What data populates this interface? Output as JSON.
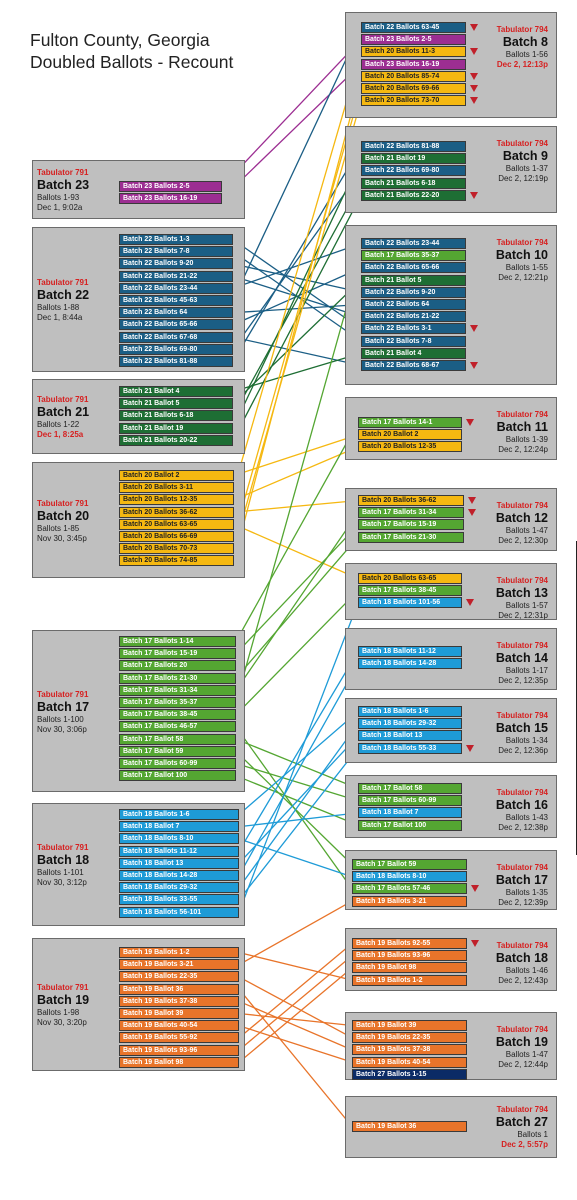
{
  "title": {
    "line1": "Fulton County, Georgia",
    "line2": "Doubled Ballots - Recount"
  },
  "colors": {
    "17": "#54a632",
    "18": "#1e9bd7",
    "19": "#e8742a",
    "20": "#f5b811",
    "21": "#1e6e34",
    "22": "#1b5e85",
    "23": "#9c2e92",
    "27": "#0b2b66"
  },
  "left_batches": [
    {
      "id": "L23",
      "tabulator": "Tabulator 791",
      "batch": "Batch 23",
      "ballots": "Ballots 1-93",
      "date": "Dec 1, 9:02a",
      "date_red": false,
      "chips": [
        {
          "label": "Batch 23 Ballots 2-5",
          "c": "23"
        },
        {
          "label": "Batch 23 Ballots 16-19",
          "c": "23"
        }
      ]
    },
    {
      "id": "L22",
      "tabulator": "Tabulator 791",
      "batch": "Batch 22",
      "ballots": "Ballots 1-88",
      "date": "Dec 1, 8:44a",
      "date_red": false,
      "chips": [
        {
          "label": "Batch 22 Ballots 1-3",
          "c": "22"
        },
        {
          "label": "Batch 22 Ballots 7-8",
          "c": "22"
        },
        {
          "label": "Batch 22 Ballots 9-20",
          "c": "22"
        },
        {
          "label": "Batch 22 Ballots 21-22",
          "c": "22"
        },
        {
          "label": "Batch 22 Ballots 23-44",
          "c": "22"
        },
        {
          "label": "Batch 22 Ballots 45-63",
          "c": "22"
        },
        {
          "label": "Batch 22 Ballots 64",
          "c": "22"
        },
        {
          "label": "Batch 22 Ballots 65-66",
          "c": "22"
        },
        {
          "label": "Batch 22 Ballots 67-68",
          "c": "22"
        },
        {
          "label": "Batch 22 Ballots 69-80",
          "c": "22"
        },
        {
          "label": "Batch 22 Ballots  81-88",
          "c": "22"
        }
      ]
    },
    {
      "id": "L21",
      "tabulator": "Tabulator 791",
      "batch": "Batch 21",
      "ballots": "Ballots 1-22",
      "date": "Dec 1, 8:25a",
      "date_red": true,
      "chips": [
        {
          "label": "Batch 21 Ballot 4",
          "c": "21"
        },
        {
          "label": "Batch 21 Ballot 5",
          "c": "21"
        },
        {
          "label": "Batch 21 Ballots 6-18",
          "c": "21"
        },
        {
          "label": "Batch 21 Ballot 19",
          "c": "21"
        },
        {
          "label": "Batch 21 Ballots 20-22",
          "c": "21"
        }
      ]
    },
    {
      "id": "L20",
      "tabulator": "Tabulator 791",
      "batch": "Batch 20",
      "ballots": "Ballots 1-85",
      "date": "Nov 30, 3:45p",
      "date_red": false,
      "chips": [
        {
          "label": "Batch 20 Ballot 2",
          "c": "20"
        },
        {
          "label": "Batch 20 Ballots 3-11",
          "c": "20"
        },
        {
          "label": "Batch 20 Ballots 12-35",
          "c": "20"
        },
        {
          "label": "Batch 20 Ballots 36-62",
          "c": "20"
        },
        {
          "label": "Batch 20 Ballots 63-65",
          "c": "20"
        },
        {
          "label": "Batch 20 Ballots 66-69",
          "c": "20"
        },
        {
          "label": "Batch 20 Ballots 70-73",
          "c": "20"
        },
        {
          "label": "Batch 20 Ballots 74-85",
          "c": "20"
        }
      ]
    },
    {
      "id": "L17",
      "tabulator": "Tabulator 791",
      "batch": "Batch 17",
      "ballots": "Ballots 1-100",
      "date": "Nov 30, 3:06p",
      "date_red": false,
      "chips": [
        {
          "label": "Batch 17 Ballots 1-14",
          "c": "17"
        },
        {
          "label": "Batch 17 Ballots 15-19",
          "c": "17"
        },
        {
          "label": "Batch 17 Ballots 20",
          "c": "17"
        },
        {
          "label": "Batch 17 Ballots 21-30",
          "c": "17"
        },
        {
          "label": "Batch 17 Ballots 31-34",
          "c": "17"
        },
        {
          "label": "Batch 17 Ballots 35-37",
          "c": "17"
        },
        {
          "label": "Batch 17 Ballots 38-45",
          "c": "17"
        },
        {
          "label": "Batch 17 Ballots 46-57",
          "c": "17"
        },
        {
          "label": "Batch 17 Ballot 58",
          "c": "17"
        },
        {
          "label": "Batch 17 Ballot 59",
          "c": "17"
        },
        {
          "label": "Batch 17 Ballots 60-99",
          "c": "17"
        },
        {
          "label": "Batch 17 Ballot 100",
          "c": "17"
        }
      ]
    },
    {
      "id": "L18",
      "tabulator": "Tabulator 791",
      "batch": "Batch 18",
      "ballots": "Ballots 1-101",
      "date": "Nov 30, 3:12p",
      "date_red": false,
      "chips": [
        {
          "label": "Batch 18 Ballots 1-6",
          "c": "18"
        },
        {
          "label": "Batch 18 Ballot 7",
          "c": "18"
        },
        {
          "label": "Batch 18 Ballots 8-10",
          "c": "18"
        },
        {
          "label": "Batch 18 Ballots 11-12",
          "c": "18"
        },
        {
          "label": "Batch 18 Ballot 13",
          "c": "18"
        },
        {
          "label": "Batch 18 Ballots 14-28",
          "c": "18"
        },
        {
          "label": "Batch 18 Ballots 29-32",
          "c": "18"
        },
        {
          "label": "Batch 18 Ballots 33-55",
          "c": "18"
        },
        {
          "label": "Batch 18 Ballots 56-101",
          "c": "18"
        }
      ]
    },
    {
      "id": "L19",
      "tabulator": "Tabulator 791",
      "batch": "Batch 19",
      "ballots": "Ballots 1-98",
      "date": "Nov 30, 3:20p",
      "date_red": false,
      "chips": [
        {
          "label": "Batch 19 Ballots 1-2",
          "c": "19"
        },
        {
          "label": "Batch 19 Ballots 3-21",
          "c": "19"
        },
        {
          "label": "Batch 19 Ballots 22-35",
          "c": "19"
        },
        {
          "label": "Batch 19 Ballot 36",
          "c": "19"
        },
        {
          "label": "Batch 19 Ballots 37-38",
          "c": "19"
        },
        {
          "label": "Batch 19 Ballot 39",
          "c": "19"
        },
        {
          "label": "Batch 19 Ballots 40-54",
          "c": "19"
        },
        {
          "label": "Batch 19 Ballots 55-92",
          "c": "19"
        },
        {
          "label": "Batch 19 Ballots 93-96",
          "c": "19"
        },
        {
          "label": "Batch 19 Ballot 98",
          "c": "19"
        }
      ]
    }
  ],
  "right_batches": [
    {
      "id": "R8",
      "tabulator": "Tabulator 794",
      "batch": "Batch 8",
      "ballots": "Ballots 1-56",
      "date": "Dec 2, 12:13p",
      "date_red": true,
      "chips": [
        {
          "label": "Batch 22 Ballots 63-45",
          "c": "22",
          "flag": true
        },
        {
          "label": "Batch 23 Ballots 2-5",
          "c": "23"
        },
        {
          "label": "Batch 20 Ballots 11-3",
          "c": "20",
          "flag": true
        },
        {
          "label": "Batch 23 Ballots 16-19",
          "c": "23"
        },
        {
          "label": "Batch 20 Ballots 85-74",
          "c": "20",
          "flag": true
        },
        {
          "label": "Batch 20 Ballots 69-66",
          "c": "20",
          "flag": true
        },
        {
          "label": "Batch 20 Ballots 73-70",
          "c": "20",
          "flag": true
        }
      ]
    },
    {
      "id": "R9",
      "tabulator": "Tabulator 794",
      "batch": "Batch 9",
      "ballots": "Ballots 1-37",
      "date": "Dec 2, 12:19p",
      "date_red": false,
      "chips": [
        {
          "label": "Batch 22 Ballots  81-88",
          "c": "22"
        },
        {
          "label": "Batch 21 Ballot 19",
          "c": "21"
        },
        {
          "label": "Batch 22 Ballots 69-80",
          "c": "22"
        },
        {
          "label": "Batch 21 Ballots 6-18",
          "c": "21"
        },
        {
          "label": "Batch 21 Ballots 22-20",
          "c": "21",
          "flag": true
        }
      ]
    },
    {
      "id": "R10",
      "tabulator": "Tabulator 794",
      "batch": "Batch 10",
      "ballots": "Ballots 1-55",
      "date": "Dec 2, 12:21p",
      "date_red": false,
      "chips": [
        {
          "label": "Batch 22 Ballots 23-44",
          "c": "22"
        },
        {
          "label": "Batch 17 Ballots 35-37",
          "c": "17"
        },
        {
          "label": "Batch 22 Ballots 65-66",
          "c": "22"
        },
        {
          "label": "Batch 21 Ballot 5",
          "c": "21"
        },
        {
          "label": "Batch 22 Ballots 9-20",
          "c": "22"
        },
        {
          "label": "Batch 22 Ballots 64",
          "c": "22"
        },
        {
          "label": "Batch 22 Ballots 21-22",
          "c": "22"
        },
        {
          "label": "Batch 22 Ballots 3-1",
          "c": "22",
          "flag": true
        },
        {
          "label": "Batch 22 Ballots 7-8",
          "c": "22"
        },
        {
          "label": "Batch 21 Ballot 4",
          "c": "21"
        },
        {
          "label": "Batch 22 Ballots 68-67",
          "c": "22",
          "flag": true
        }
      ]
    },
    {
      "id": "R11",
      "tabulator": "Tabulator 794",
      "batch": "Batch 11",
      "ballots": "Ballots 1-39",
      "date": "Dec 2, 12:24p",
      "date_red": false,
      "chips": [
        {
          "label": "Batch 17 Ballots 14-1",
          "c": "17",
          "flag": true
        },
        {
          "label": "Batch 20 Ballot 2",
          "c": "20"
        },
        {
          "label": "Batch 20 Ballots 12-35",
          "c": "20"
        }
      ]
    },
    {
      "id": "R12",
      "tabulator": "Tabulator 794",
      "batch": "Batch 12",
      "ballots": "Ballots 1-47",
      "date": "Dec 2, 12:30p",
      "date_red": false,
      "chips": [
        {
          "label": "Batch 20 Ballots 36-62",
          "c": "20",
          "flag": true
        },
        {
          "label": "Batch 17 Ballots 31-34",
          "c": "17",
          "flag": true
        },
        {
          "label": "Batch 17 Ballots 15-19",
          "c": "17"
        },
        {
          "label": "Batch 17 Ballots 21-30",
          "c": "17"
        }
      ]
    },
    {
      "id": "R13",
      "tabulator": "Tabulator 794",
      "batch": "Batch 13",
      "ballots": "Ballots 1-57",
      "date": "Dec 2, 12:31p",
      "date_red": false,
      "chips": [
        {
          "label": "Batch 20 Ballots 63-65",
          "c": "20"
        },
        {
          "label": "Batch 17 Ballots 38-45",
          "c": "17"
        },
        {
          "label": "Batch 18 Ballots 101-56",
          "c": "18",
          "flag": true
        }
      ]
    },
    {
      "id": "R14",
      "tabulator": "Tabulator 794",
      "batch": "Batch 14",
      "ballots": "Ballots 1-17",
      "date": "Dec 2, 12:35p",
      "date_red": false,
      "chips": [
        {
          "label": "Batch 18 Ballots 11-12",
          "c": "18"
        },
        {
          "label": "Batch 18 Ballots 14-28",
          "c": "18"
        }
      ]
    },
    {
      "id": "R15",
      "tabulator": "Tabulator 794",
      "batch": "Batch 15",
      "ballots": "Ballots 1-34",
      "date": "Dec 2, 12:36p",
      "date_red": false,
      "chips": [
        {
          "label": "Batch 18 Ballots 1-6",
          "c": "18"
        },
        {
          "label": "Batch 18 Ballots 29-32",
          "c": "18"
        },
        {
          "label": "Batch 18 Ballot 13",
          "c": "18"
        },
        {
          "label": "Batch 18 Ballots 55-33",
          "c": "18",
          "flag": true
        }
      ]
    },
    {
      "id": "R16",
      "tabulator": "Tabulator 794",
      "batch": "Batch 16",
      "ballots": "Ballots 1-43",
      "date": "Dec 2, 12:38p",
      "date_red": false,
      "chips": [
        {
          "label": "Batch 17 Ballot 58",
          "c": "17"
        },
        {
          "label": "Batch 17 Ballots 60-99",
          "c": "17"
        },
        {
          "label": "Batch 18 Ballot 7",
          "c": "18"
        },
        {
          "label": "Batch 17 Ballot 100",
          "c": "17"
        }
      ]
    },
    {
      "id": "R17",
      "tabulator": "Tabulator 794",
      "batch": "Batch 17",
      "ballots": "Ballots 1-35",
      "date": "Dec 2, 12:39p",
      "date_red": false,
      "chips": [
        {
          "label": "Batch 17 Ballot 59",
          "c": "17"
        },
        {
          "label": "Batch 18 Ballots 8-10",
          "c": "18"
        },
        {
          "label": "Batch 17 Ballots 57-46",
          "c": "17",
          "flag": true
        },
        {
          "label": "Batch 19 Ballots 3-21",
          "c": "19"
        }
      ]
    },
    {
      "id": "R18",
      "tabulator": "Tabulator 794",
      "batch": "Batch 18",
      "ballots": "Ballots 1-46",
      "date": "Dec 2, 12:43p",
      "date_red": false,
      "chips": [
        {
          "label": "Batch 19 Ballots 92-55",
          "c": "19",
          "flag": true
        },
        {
          "label": "Batch 19 Ballots 93-96",
          "c": "19"
        },
        {
          "label": "Batch 19 Ballot 98",
          "c": "19"
        },
        {
          "label": "Batch 19 Ballots 1-2",
          "c": "19"
        }
      ]
    },
    {
      "id": "R19",
      "tabulator": "Tabulator 794",
      "batch": "Batch 19",
      "ballots": "Ballots 1-47",
      "date": "Dec 2, 12:44p",
      "date_red": false,
      "chips": [
        {
          "label": "Batch 19 Ballot 39",
          "c": "19"
        },
        {
          "label": "Batch 19 Ballots 22-35",
          "c": "19"
        },
        {
          "label": "Batch 19 Ballots 37-38",
          "c": "19"
        },
        {
          "label": "Batch 19 Ballots 40-54",
          "c": "19"
        },
        {
          "label": "Batch 27 Ballots 1-15",
          "c": "27"
        }
      ]
    },
    {
      "id": "R27",
      "tabulator": "Tabulator 794",
      "batch": "Batch 27",
      "ballots": "Ballots 1",
      "date": "Dec 2, 5:57p",
      "date_red": true,
      "chips": [
        {
          "label": "Batch 19 Ballot 36",
          "c": "19"
        }
      ]
    }
  ],
  "links": [
    [
      "L23",
      0,
      "R8",
      1
    ],
    [
      "L23",
      1,
      "R8",
      3
    ],
    [
      "L22",
      0,
      "R10",
      7
    ],
    [
      "L22",
      1,
      "R10",
      8
    ],
    [
      "L22",
      2,
      "R10",
      4
    ],
    [
      "L22",
      3,
      "R10",
      6
    ],
    [
      "L22",
      4,
      "R10",
      0
    ],
    [
      "L22",
      5,
      "R8",
      0
    ],
    [
      "L22",
      6,
      "R10",
      5
    ],
    [
      "L22",
      7,
      "R10",
      2
    ],
    [
      "L22",
      8,
      "R10",
      10
    ],
    [
      "L22",
      9,
      "R9",
      2
    ],
    [
      "L22",
      10,
      "R9",
      0
    ],
    [
      "L21",
      0,
      "R10",
      9
    ],
    [
      "L21",
      1,
      "R10",
      3
    ],
    [
      "L21",
      2,
      "R9",
      3
    ],
    [
      "L21",
      3,
      "R9",
      1
    ],
    [
      "L21",
      4,
      "R9",
      4
    ],
    [
      "L20",
      0,
      "R11",
      1
    ],
    [
      "L20",
      1,
      "R8",
      2
    ],
    [
      "L20",
      2,
      "R11",
      2
    ],
    [
      "L20",
      3,
      "R12",
      0
    ],
    [
      "L20",
      4,
      "R13",
      0
    ],
    [
      "L20",
      5,
      "R8",
      5
    ],
    [
      "L20",
      6,
      "R8",
      6
    ],
    [
      "L20",
      7,
      "R8",
      4
    ],
    [
      "L17",
      0,
      "R11",
      0
    ],
    [
      "L17",
      1,
      "R12",
      2
    ],
    [
      "L17",
      3,
      "R12",
      3
    ],
    [
      "L17",
      4,
      "R12",
      1
    ],
    [
      "L17",
      5,
      "R10",
      1
    ],
    [
      "L17",
      6,
      "R13",
      1
    ],
    [
      "L17",
      7,
      "R17",
      2
    ],
    [
      "L17",
      8,
      "R16",
      0
    ],
    [
      "L17",
      9,
      "R17",
      0
    ],
    [
      "L17",
      10,
      "R16",
      1
    ],
    [
      "L17",
      11,
      "R16",
      3
    ],
    [
      "L18",
      0,
      "R15",
      0
    ],
    [
      "L18",
      1,
      "R16",
      2
    ],
    [
      "L18",
      2,
      "R17",
      1
    ],
    [
      "L18",
      3,
      "R14",
      0
    ],
    [
      "L18",
      4,
      "R15",
      2
    ],
    [
      "L18",
      5,
      "R14",
      1
    ],
    [
      "L18",
      6,
      "R15",
      1
    ],
    [
      "L18",
      7,
      "R15",
      3
    ],
    [
      "L18",
      8,
      "R13",
      2
    ],
    [
      "L19",
      0,
      "R18",
      3
    ],
    [
      "L19",
      1,
      "R17",
      3
    ],
    [
      "L19",
      2,
      "R19",
      1
    ],
    [
      "L19",
      3,
      "R27",
      0
    ],
    [
      "L19",
      4,
      "R19",
      2
    ],
    [
      "L19",
      5,
      "R19",
      0
    ],
    [
      "L19",
      6,
      "R19",
      3
    ],
    [
      "L19",
      7,
      "R18",
      0
    ],
    [
      "L19",
      8,
      "R18",
      1
    ],
    [
      "L19",
      9,
      "R18",
      2
    ]
  ]
}
